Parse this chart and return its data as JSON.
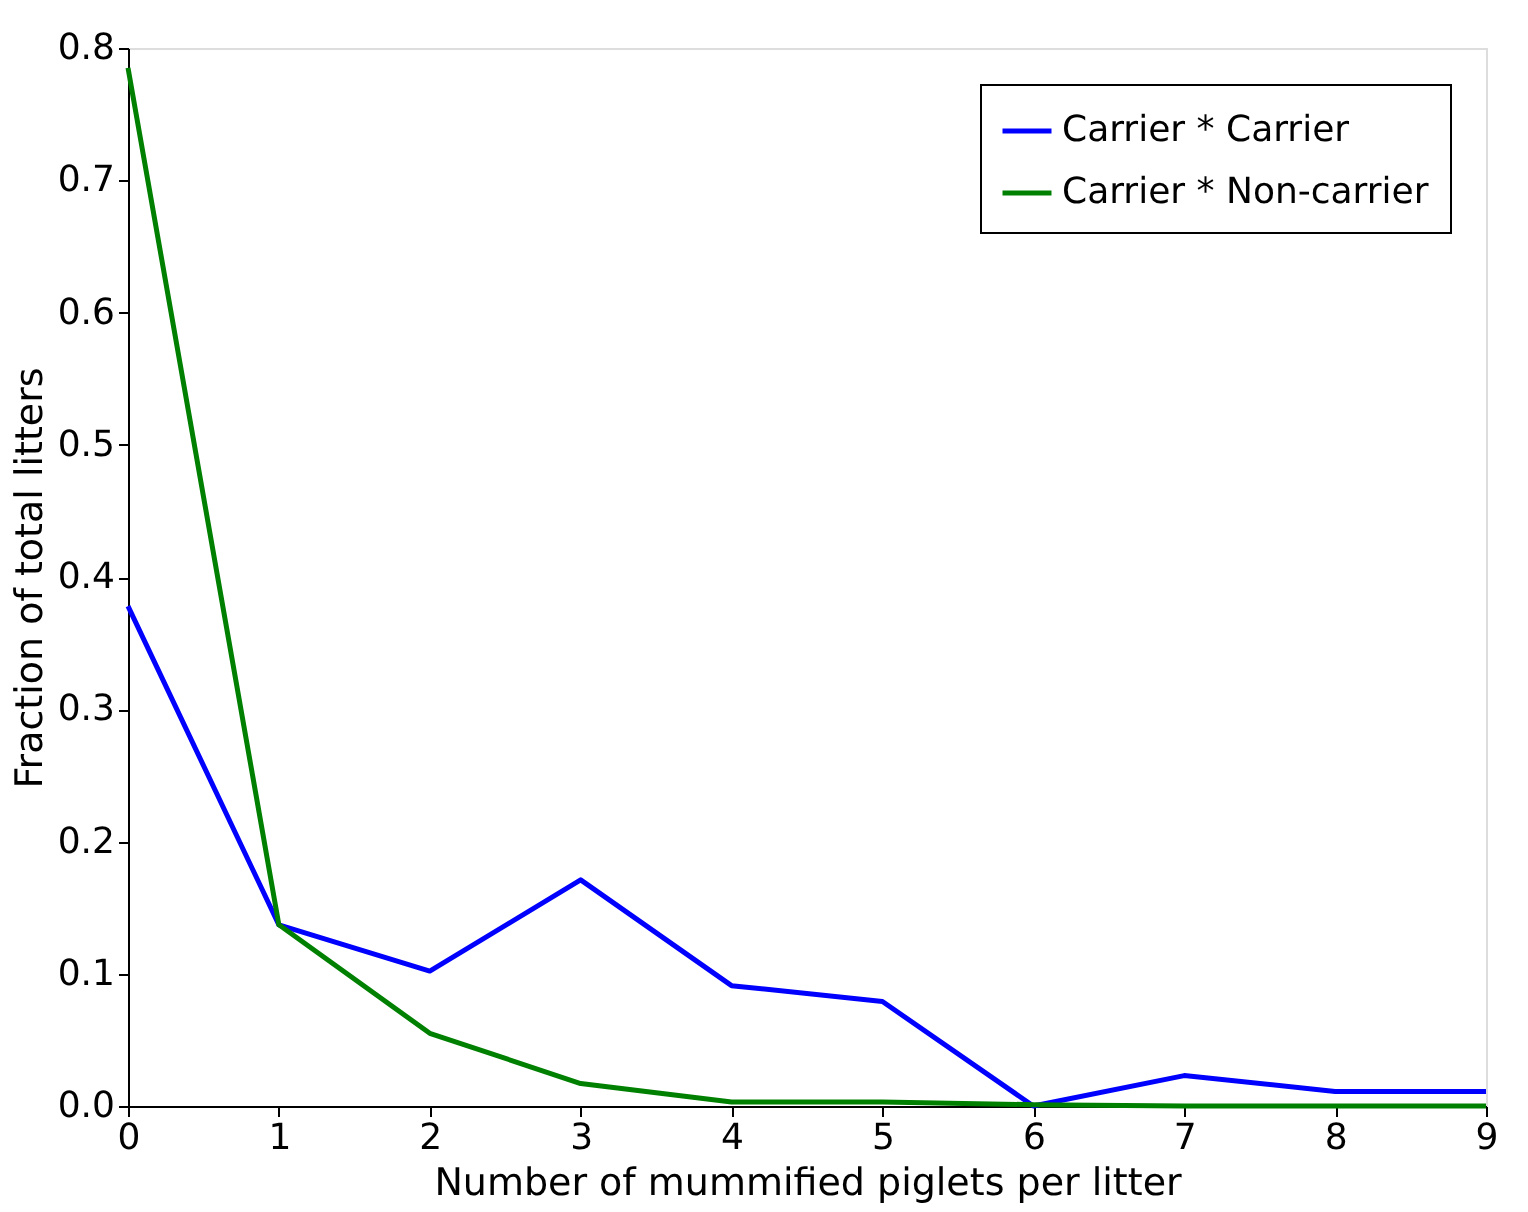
{
  "chart_data": {
    "type": "line",
    "xlabel": "Number of mummified piglets per litter",
    "ylabel": "Fraction of total litters",
    "x": [
      0,
      1,
      2,
      3,
      4,
      5,
      6,
      7,
      8,
      9
    ],
    "series": [
      {
        "name": "Carrier * Carrier",
        "color": "#0000ff",
        "values": [
          0.378,
          0.137,
          0.102,
          0.171,
          0.091,
          0.079,
          0.0,
          0.023,
          0.011,
          0.011
        ]
      },
      {
        "name": "Carrier * Non-carrier",
        "color": "#008000",
        "values": [
          0.785,
          0.137,
          0.055,
          0.017,
          0.003,
          0.003,
          0.001,
          0.0,
          0.0,
          0.0
        ]
      }
    ],
    "xlim": [
      0,
      9
    ],
    "xticks": [
      0,
      1,
      2,
      3,
      4,
      5,
      6,
      7,
      8,
      9
    ],
    "ylim": [
      0,
      0.8
    ],
    "yticks": [
      {
        "value": 0,
        "label": "0.0"
      },
      0.1,
      0.2,
      0.3,
      0.4,
      0.5,
      0.6,
      0.7,
      0.8
    ],
    "grid": false,
    "legend": "top right",
    "marker": "none",
    "line_style": "solid"
  }
}
